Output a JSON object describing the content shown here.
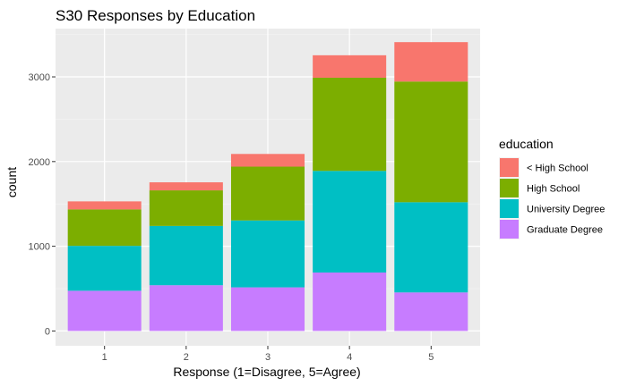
{
  "chart_data": {
    "type": "bar",
    "stacked": true,
    "title": "S30 Responses by Education",
    "xlabel": "Response (1=Disagree, 5=Agree)",
    "ylabel": "count",
    "categories": [
      "1",
      "2",
      "3",
      "4",
      "5"
    ],
    "ylim": [
      0,
      3570
    ],
    "yticks": [
      0,
      1000,
      2000,
      3000
    ],
    "grid": true,
    "legend_title": "education",
    "legend_position": "right",
    "series": [
      {
        "name": "Graduate Degree",
        "color": "#C77CFF",
        "values": [
          475,
          540,
          515,
          690,
          455
        ]
      },
      {
        "name": "University Degree",
        "color": "#00BFC4",
        "values": [
          530,
          700,
          790,
          1200,
          1065
        ]
      },
      {
        "name": "High School",
        "color": "#7CAE00",
        "values": [
          430,
          420,
          635,
          1100,
          1425
        ]
      },
      {
        "name": "< High School",
        "color": "#F8766D",
        "values": [
          95,
          95,
          150,
          265,
          465
        ]
      }
    ],
    "legend_order": [
      "< High School",
      "High School",
      "University Degree",
      "Graduate Degree"
    ]
  }
}
